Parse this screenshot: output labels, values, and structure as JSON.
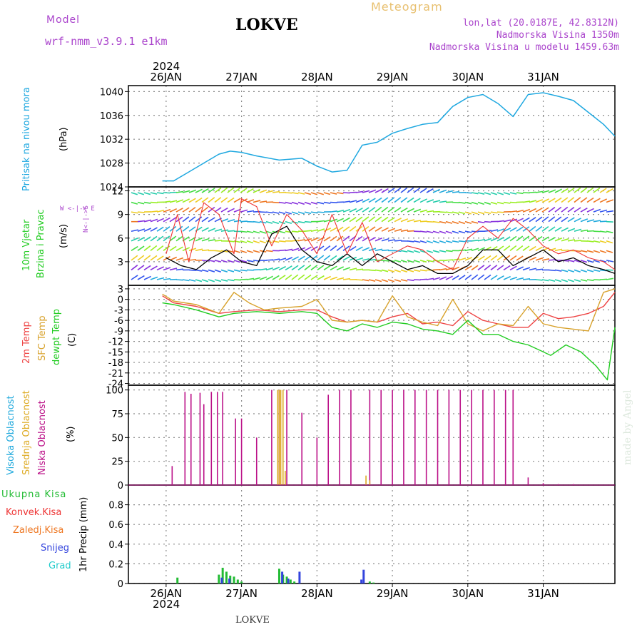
{
  "header": {
    "model_label": "Model",
    "model_name": "wrf-nmm_v3.9.1  e1km",
    "station": "LOKVE",
    "product": "Meteogram",
    "lonlat": "lon,lat (20.0187E, 42.8312N)",
    "elevation": "Nadmorska Visina 1350m",
    "model_elevation": "Nadmorska Visina u modelu 1459.63m",
    "year_top": "2024",
    "year_bottom": "2024",
    "footer_station": "LOKVE",
    "credit": "made by Angel"
  },
  "colors": {
    "pressure": "#1fa8e0",
    "t2m": "#ee4444",
    "sfc": "#d8a22c",
    "dewpt": "#22cc22",
    "high_cloud": "#22aadd",
    "mid_cloud": "#ddaa22",
    "low_cloud": "#bb1188",
    "total_precip": "#22bb33",
    "conv_precip": "#ee3333",
    "ice_precip": "#ee7722",
    "snow": "#3344dd",
    "grad": "#22cccc",
    "model_label": "#aa44cc",
    "product": "#e8c070"
  },
  "chart_data": [
    {
      "type": "line",
      "panel": "pressure",
      "ylabel_lines": [
        "Pritisak na nivou mora",
        "(hPa)"
      ],
      "ylim": [
        1024,
        1041
      ],
      "yticks": [
        "1024",
        "1028",
        "1032",
        "1036",
        "1040"
      ],
      "x_days": [
        "26JAN",
        "27JAN",
        "28JAN",
        "29JAN",
        "30JAN",
        "31JAN"
      ],
      "series": [
        {
          "x": [
            -0.05,
            0.1,
            0.3,
            0.5,
            0.7,
            0.85,
            1.0,
            1.2,
            1.5,
            1.8,
            2.0,
            2.2,
            2.4,
            2.6,
            2.8,
            3.0,
            3.2,
            3.4,
            3.6,
            3.8,
            4.0,
            4.2,
            4.4,
            4.6,
            4.8,
            5.0,
            5.2,
            5.4,
            5.6,
            5.8,
            5.95
          ],
          "y": [
            1025,
            1025,
            1026.5,
            1028,
            1029.5,
            1030,
            1029.8,
            1029.2,
            1028.5,
            1028.8,
            1027.5,
            1026.5,
            1026.8,
            1031,
            1031.5,
            1033,
            1033.8,
            1034.5,
            1034.8,
            1037.5,
            1039,
            1039.5,
            1038,
            1035.8,
            1039.5,
            1039.8,
            1039.2,
            1038.5,
            1036.5,
            1034.5,
            1032.5
          ]
        }
      ]
    },
    {
      "type": "line",
      "panel": "wind",
      "ylabel_lines": [
        "10m Vjetar",
        "Brzina i Pravac",
        "(m/s)"
      ],
      "compass": "W <-|-> E",
      "compass_vertical": "N<-|->S",
      "ylim": [
        0,
        12.5
      ],
      "yticks": [
        "3",
        "6",
        "9",
        "12"
      ],
      "series": [
        {
          "name": "wind_speed",
          "x": [
            0.0,
            0.2,
            0.4,
            0.6,
            0.8,
            1.0,
            1.2,
            1.4,
            1.6,
            1.8,
            2.0,
            2.2,
            2.4,
            2.6,
            2.8,
            3.0,
            3.2,
            3.4,
            3.6,
            3.8,
            4.0,
            4.2,
            4.4,
            4.6,
            4.8,
            5.0,
            5.2,
            5.4,
            5.6,
            5.8,
            5.95
          ],
          "y": [
            3.5,
            2.5,
            2.0,
            3.5,
            4.5,
            3.0,
            2.5,
            6.5,
            7.5,
            4.5,
            3.0,
            2.5,
            4.0,
            2.5,
            4.0,
            3.0,
            2.0,
            2.5,
            1.5,
            1.5,
            2.5,
            4.5,
            4.5,
            2.5,
            3.5,
            4.5,
            3.0,
            3.5,
            2.5,
            2.0,
            1.5
          ]
        },
        {
          "name": "wind_gust",
          "x": [
            0.0,
            0.15,
            0.3,
            0.5,
            0.7,
            0.9,
            1.0,
            1.2,
            1.4,
            1.6,
            1.8,
            2.0,
            2.2,
            2.4,
            2.6,
            2.8,
            3.0,
            3.2,
            3.4,
            3.6,
            3.8,
            4.0,
            4.2,
            4.4,
            4.6,
            4.8,
            5.0,
            5.2,
            5.4,
            5.6,
            5.8,
            5.95
          ],
          "y": [
            4,
            9,
            3,
            10.5,
            9,
            4,
            11,
            10,
            5,
            9,
            7,
            4,
            9,
            4,
            8,
            3,
            4,
            5,
            4.5,
            3,
            2,
            6,
            7.5,
            6,
            8.5,
            7,
            5,
            4,
            4.5,
            3.5,
            3,
            2
          ]
        }
      ]
    },
    {
      "type": "line",
      "panel": "temperature",
      "ylabel_lines": [
        "2m Temp",
        "SFC Temp",
        "dewpt Temp",
        "(C)"
      ],
      "ylim": [
        -24.5,
        4
      ],
      "yticks": [
        "3",
        "0",
        "-3",
        "-6",
        "-9",
        "-12",
        "-15",
        "-18",
        "-21",
        "-24"
      ],
      "series": [
        {
          "name": "2m Temp",
          "x": [
            -0.05,
            0.1,
            0.4,
            0.7,
            0.9,
            1.2,
            1.5,
            1.8,
            2.0,
            2.2,
            2.4,
            2.6,
            2.8,
            3.0,
            3.2,
            3.4,
            3.6,
            3.8,
            4.0,
            4.2,
            4.4,
            4.6,
            4.8,
            5.0,
            5.2,
            5.4,
            5.6,
            5.8,
            5.95
          ],
          "y": [
            1,
            -1,
            -2,
            -4,
            -3.5,
            -3,
            -3.5,
            -3,
            -3,
            -5,
            -6.5,
            -6,
            -6.5,
            -5,
            -4,
            -7,
            -6.5,
            -7.5,
            -3.5,
            -6,
            -7,
            -8,
            -8,
            -4,
            -5.5,
            -5,
            -4,
            -2,
            2
          ]
        },
        {
          "name": "SFC Temp",
          "x": [
            -0.05,
            0.1,
            0.4,
            0.7,
            0.9,
            1.1,
            1.3,
            1.5,
            1.8,
            2.0,
            2.2,
            2.4,
            2.6,
            2.8,
            3.0,
            3.2,
            3.4,
            3.6,
            3.8,
            4.0,
            4.2,
            4.4,
            4.6,
            4.8,
            5.0,
            5.2,
            5.4,
            5.6,
            5.8,
            5.95
          ],
          "y": [
            1.5,
            -0.5,
            -1.5,
            -4,
            2,
            -1,
            -3,
            -2.5,
            -2,
            0,
            -6,
            -6.5,
            -6,
            -6.5,
            1,
            -5,
            -6.5,
            -7.5,
            0,
            -7,
            -9,
            -7,
            -7.5,
            -2,
            -7,
            -8,
            -8.5,
            -9,
            2,
            3
          ]
        },
        {
          "name": "dewpt Temp",
          "x": [
            -0.05,
            0.1,
            0.4,
            0.7,
            0.9,
            1.2,
            1.5,
            1.8,
            2.0,
            2.2,
            2.4,
            2.6,
            2.8,
            3.0,
            3.2,
            3.4,
            3.6,
            3.8,
            4.0,
            4.2,
            4.4,
            4.6,
            4.8,
            5.0,
            5.1,
            5.3,
            5.5,
            5.7,
            5.85,
            5.95
          ],
          "y": [
            -1,
            -1.5,
            -3,
            -5,
            -4,
            -3.5,
            -4,
            -3.5,
            -4,
            -8,
            -9,
            -7,
            -8,
            -6.5,
            -7,
            -8.5,
            -9,
            -10,
            -6,
            -10,
            -10,
            -12,
            -13,
            -15,
            -16,
            -13,
            -15,
            -19,
            -23,
            -8
          ]
        }
      ]
    },
    {
      "type": "bar",
      "panel": "clouds",
      "ylabel_lines": [
        "Visoka Oblacnost",
        "Srednja Oblacnost",
        "Niska Oblacnost",
        "(%)"
      ],
      "ylim": [
        0,
        105
      ],
      "yticks": [
        "0",
        "25",
        "50",
        "75",
        "100"
      ],
      "series": [
        {
          "name": "Niska Oblacnost",
          "x": [
            0.08,
            0.25,
            0.33,
            0.45,
            0.5,
            0.6,
            0.68,
            0.75,
            0.92,
            1.0,
            1.2,
            1.4,
            1.5,
            1.6,
            1.8,
            2.0,
            2.15,
            2.3,
            2.45,
            2.7,
            2.85,
            3.0,
            3.15,
            3.3,
            3.45,
            3.6,
            3.75,
            3.9,
            4.05,
            4.2,
            4.35,
            4.5,
            4.6,
            4.8,
            5.0,
            5.2,
            5.4
          ],
          "y": [
            20,
            98,
            96,
            97,
            85,
            98,
            98,
            98,
            70,
            70,
            50,
            100,
            100,
            100,
            76,
            50,
            95,
            100,
            100,
            100,
            100,
            100,
            100,
            100,
            100,
            100,
            100,
            100,
            100,
            100,
            100,
            100,
            100,
            8,
            2,
            1,
            1
          ]
        },
        {
          "name": "Srednja Oblacnost",
          "x": [
            1.48,
            1.5,
            1.52,
            1.55,
            1.58,
            2.65,
            2.7
          ],
          "y": [
            100,
            100,
            100,
            100,
            15,
            10,
            5
          ]
        }
      ]
    },
    {
      "type": "bar",
      "panel": "precip",
      "ylabel_lines": [
        "1hr Precip (mm)"
      ],
      "legend": [
        "Ukupna Kisa",
        "Konvek.Kisa",
        "Zaledj.Kisa",
        "Snijeg",
        "Grad"
      ],
      "ylim": [
        0,
        1.0
      ],
      "yticks": [
        "0",
        "0.2",
        "0.4",
        "0.6",
        "0.8"
      ],
      "series": [
        {
          "name": "Ukupna Kisa",
          "x": [
            0.15,
            0.7,
            0.75,
            0.8,
            0.85,
            0.9,
            0.95,
            1.0,
            1.5,
            1.55,
            1.6,
            1.65,
            1.7,
            2.7,
            2.75
          ],
          "y": [
            0.06,
            0.09,
            0.16,
            0.12,
            0.08,
            0.07,
            0.04,
            0.02,
            0.15,
            0.09,
            0.07,
            0.04,
            0.02,
            0.02,
            0.01
          ]
        },
        {
          "name": "Snijeg",
          "x": [
            0.72,
            0.82,
            1.52,
            1.6,
            1.75,
            2.57,
            2.6
          ],
          "y": [
            0.06,
            0.05,
            0.12,
            0.05,
            0.12,
            0.04,
            0.14
          ]
        }
      ]
    }
  ]
}
